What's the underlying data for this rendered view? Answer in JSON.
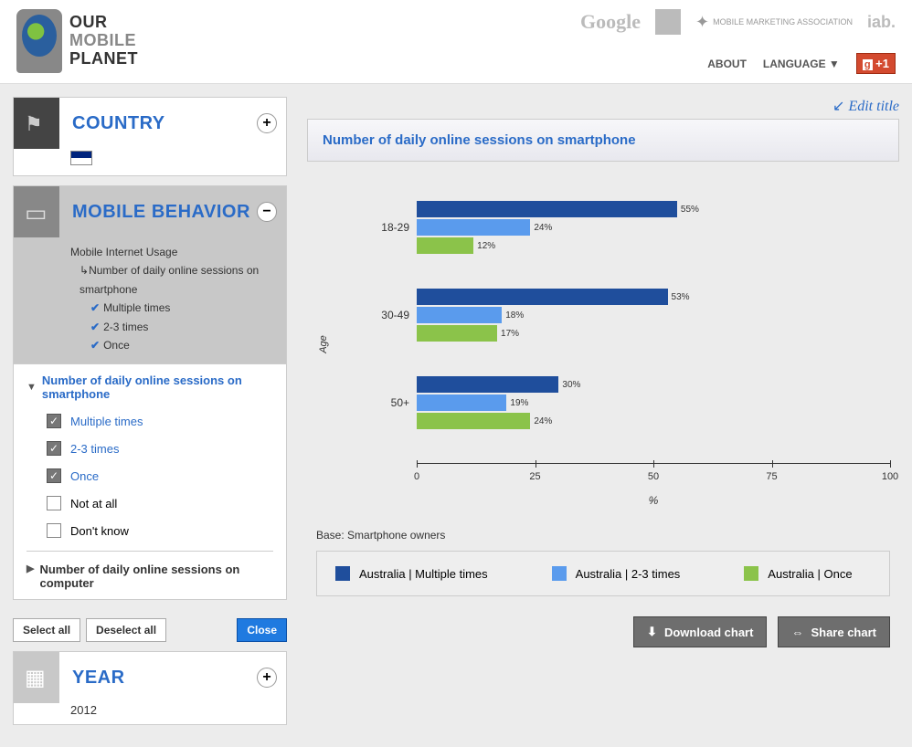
{
  "brand": {
    "l1": "OUR",
    "l2": "MOBILE",
    "l3": "PLANET"
  },
  "sponsors": {
    "google": "Google",
    "iab": "iab.",
    "mma": "MOBILE MARKETING ASSOCIATION"
  },
  "nav": {
    "about": "ABOUT",
    "language": "LANGUAGE",
    "gplus": "+1"
  },
  "sidebar": {
    "country": {
      "title": "COUNTRY",
      "toggle": "+"
    },
    "behavior": {
      "title": "MOBILE BEHAVIOR",
      "toggle": "−",
      "parent": "Mobile Internet Usage",
      "tree_sub": "Number of daily online sessions on smartphone",
      "checks": [
        "Multiple times",
        "2-3 times",
        "Once"
      ],
      "expanded_title": "Number of daily online sessions on smartphone",
      "options": [
        {
          "label": "Multiple times",
          "checked": true
        },
        {
          "label": "2-3 times",
          "checked": true
        },
        {
          "label": "Once",
          "checked": true
        },
        {
          "label": "Not at all",
          "checked": false
        },
        {
          "label": "Don't know",
          "checked": false
        }
      ],
      "collapsed_title": "Number of daily online sessions on computer"
    },
    "buttons": {
      "select_all": "Select all",
      "deselect_all": "Deselect all",
      "close": "Close"
    },
    "year": {
      "title": "YEAR",
      "value": "2012",
      "toggle": "+"
    }
  },
  "chart": {
    "edit": "Edit title",
    "title": "Number of daily online sessions on smartphone",
    "y_axis": "Age",
    "x_axis": "%",
    "xmax": 100,
    "ticks": [
      0,
      25,
      50,
      75,
      100
    ],
    "colors": {
      "s1": "#1f4e9c",
      "s2": "#5a9bed",
      "s3": "#8bc34a"
    },
    "groups": [
      {
        "label": "18-29",
        "values": [
          {
            "v": 55,
            "c": "s1"
          },
          {
            "v": 24,
            "c": "s2"
          },
          {
            "v": 12,
            "c": "s3"
          }
        ]
      },
      {
        "label": "30-49",
        "values": [
          {
            "v": 53,
            "c": "s1"
          },
          {
            "v": 18,
            "c": "s2"
          },
          {
            "v": 17,
            "c": "s3"
          }
        ]
      },
      {
        "label": "50+",
        "values": [
          {
            "v": 30,
            "c": "s1"
          },
          {
            "v": 19,
            "c": "s2"
          },
          {
            "v": 24,
            "c": "s3"
          }
        ]
      }
    ],
    "base": "Base: Smartphone owners",
    "legend": [
      {
        "c": "s1",
        "label": "Australia | Multiple times"
      },
      {
        "c": "s2",
        "label": "Australia | 2-3 times"
      },
      {
        "c": "s3",
        "label": "Australia | Once"
      }
    ],
    "actions": {
      "download": "Download chart",
      "share": "Share chart"
    }
  }
}
